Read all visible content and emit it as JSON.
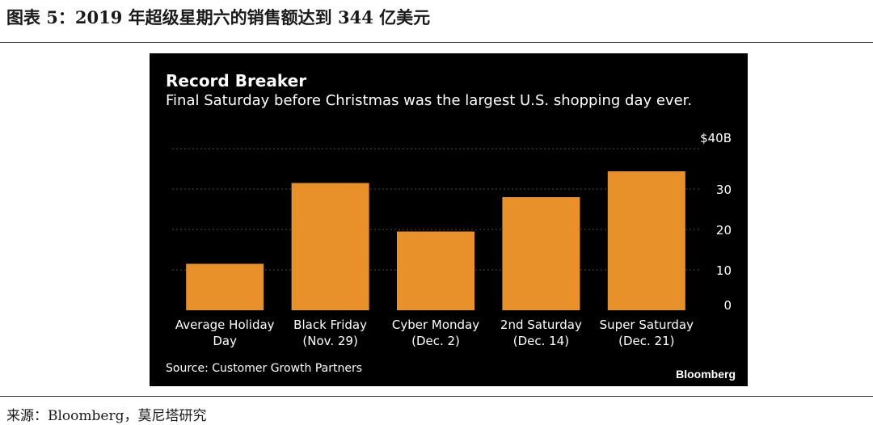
{
  "figure": {
    "title": "图表 5：2019 年超级星期六的销售额达到 344 亿美元",
    "source": "来源：Bloomberg，莫尼塔研究"
  },
  "colors": {
    "bar": "#e8912a",
    "background": "#000000",
    "grid": "#4a4a4a",
    "text": "#ffffff"
  },
  "chart_data": {
    "type": "bar",
    "title": "Record Breaker",
    "subtitle": "Final Saturday before Christmas was the largest U.S. shopping day ever.",
    "categories": [
      [
        "Average Holiday",
        "Day"
      ],
      [
        "Black Friday",
        "(Nov. 29)"
      ],
      [
        "Cyber Monday",
        "(Dec. 2)"
      ],
      [
        "2nd Saturday",
        "(Dec. 14)"
      ],
      [
        "Super Saturday",
        "(Dec. 21)"
      ]
    ],
    "values": [
      11.5,
      31.5,
      19.5,
      28,
      34.4
    ],
    "ylim": [
      0,
      40
    ],
    "yticks": [
      {
        "value": 0,
        "label": "0"
      },
      {
        "value": 10,
        "label": "10"
      },
      {
        "value": 20,
        "label": "20"
      },
      {
        "value": 30,
        "label": "30"
      },
      {
        "value": 40,
        "label": "$40B"
      }
    ],
    "grid": true,
    "y_axis_side": "right",
    "source": "Source: Customer Growth Partners",
    "brand": "Bloomberg"
  }
}
